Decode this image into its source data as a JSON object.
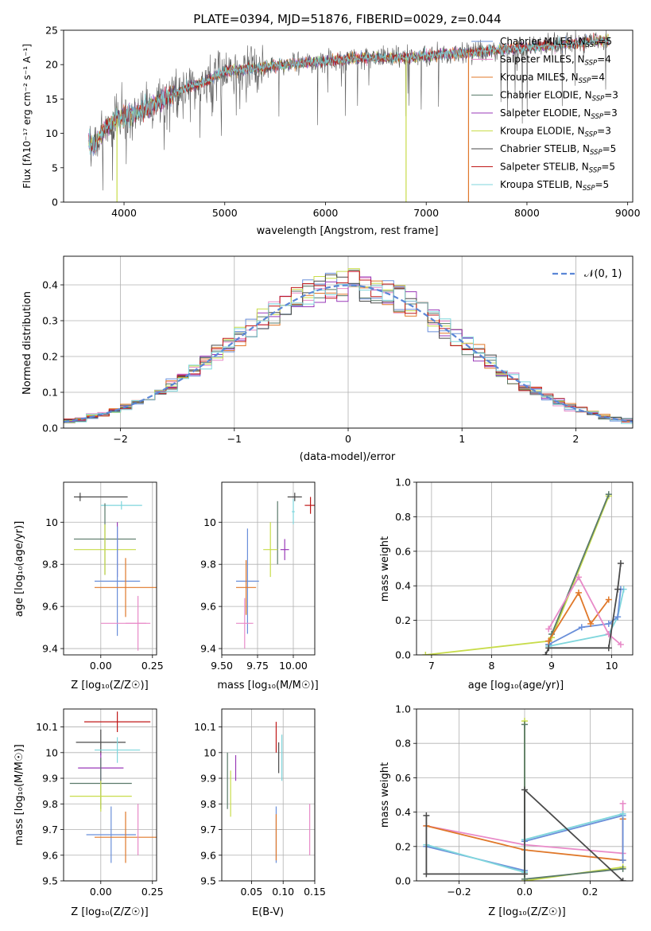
{
  "chart_data": [
    {
      "id": "spectrum",
      "type": "line",
      "title": "PLATE=0394, MJD=51876, FIBERID=0029, z=0.044",
      "xlabel": "wavelength [Angstrom, rest frame]",
      "ylabel": "Flux [fλ10⁻¹⁷ erg cm⁻² s⁻¹ A⁻¹]",
      "xlim": [
        3400,
        9050
      ],
      "ylim": [
        0,
        25
      ],
      "xticks": [
        4000,
        5000,
        6000,
        7000,
        8000,
        9000
      ],
      "yticks": [
        0,
        5,
        10,
        15,
        20,
        25
      ],
      "grid": false,
      "legend_position": "top-right",
      "continuum": {
        "x": [
          3650,
          3700,
          3800,
          3900,
          4000,
          4200,
          4400,
          4600,
          4800,
          5000,
          5300,
          5600,
          6000,
          6400,
          6800,
          7200,
          7600,
          8000,
          8400,
          8800
        ],
        "y": [
          9.0,
          8.0,
          10.5,
          12.0,
          12.5,
          13.5,
          15.0,
          16.5,
          17.5,
          19.0,
          19.5,
          20.0,
          20.5,
          21.0,
          21.0,
          21.5,
          22.0,
          22.5,
          23.0,
          23.5
        ]
      },
      "drop_lines_x": [
        3930,
        6800,
        7420
      ],
      "series": [
        {
          "name": "Chabrier MILES, N",
          "sub": "SSP",
          "suffix": "=5",
          "color": "#6a8fd9"
        },
        {
          "name": "Salpeter MILES, N",
          "sub": "SSP",
          "suffix": "=4",
          "color": "#e88ac8"
        },
        {
          "name": "Kroupa MILES, N",
          "sub": "SSP",
          "suffix": "=4",
          "color": "#e0782a"
        },
        {
          "name": "Chabrier ELODIE, N",
          "sub": "SSP",
          "suffix": "=3",
          "color": "#5a7a6a"
        },
        {
          "name": "Salpeter ELODIE, N",
          "sub": "SSP",
          "suffix": "=3",
          "color": "#9a3ab8"
        },
        {
          "name": "Kroupa ELODIE, N",
          "sub": "SSP",
          "suffix": "=3",
          "color": "#c8dc4a"
        },
        {
          "name": "Chabrier STELIB, N",
          "sub": "SSP",
          "suffix": "=5",
          "color": "#4a4a4a"
        },
        {
          "name": "Salpeter STELIB, N",
          "sub": "SSP",
          "suffix": "=5",
          "color": "#c01818"
        },
        {
          "name": "Kroupa STELIB, N",
          "sub": "SSP",
          "suffix": "=5",
          "color": "#7fd6dc"
        }
      ]
    },
    {
      "id": "residuals",
      "type": "line",
      "xlabel": "(data-model)/error",
      "ylabel": "Normed distribution",
      "xlim": [
        -2.5,
        2.5
      ],
      "ylim": [
        0,
        0.48
      ],
      "xticks": [
        -2,
        -1,
        0,
        1,
        2
      ],
      "yticks": [
        0.0,
        0.1,
        0.2,
        0.3,
        0.4
      ],
      "grid": true,
      "legend_position": "top-right",
      "reference_curve": {
        "name": "𝒩(0, 1)",
        "color": "#5b86d6",
        "style": "dashed"
      },
      "bin_width": 0.1
    },
    {
      "id": "age-vs-Z",
      "type": "scatter",
      "xlabel": "Z [log₁₀(Z/Z☉)]",
      "ylabel": "age  [log₁₀(age/yr)]",
      "xlim": [
        -0.18,
        0.27
      ],
      "ylim": [
        9.37,
        10.19
      ],
      "xticks": [
        0.0,
        0.25
      ],
      "xtick_labels": [
        "0.00",
        "0.25"
      ],
      "yticks": [
        9.4,
        9.6,
        9.8,
        10.0
      ],
      "grid": true,
      "points": [
        {
          "x": 0.1,
          "y": 10.08,
          "xerr": 0.1,
          "yerr": 0.02,
          "color": "#7fd6dc"
        },
        {
          "x": -0.1,
          "y": 10.12,
          "xerr": 0.01,
          "yerr": 0.02,
          "color": "#4a4a4a"
        },
        {
          "x": 0.0,
          "y": 10.12,
          "xerr": 0.13,
          "yerr": 0.0,
          "color": "#4a4a4a"
        },
        {
          "x": 0.02,
          "y": 9.92,
          "xerr": 0.15,
          "yerr": 0.17,
          "color": "#5a7a6a"
        },
        {
          "x": 0.02,
          "y": 9.87,
          "xerr": 0.15,
          "yerr": 0.12,
          "color": "#c8dc4a"
        },
        {
          "x": 0.08,
          "y": 9.87,
          "xerr": 0.0,
          "yerr": 0.13,
          "color": "#9a3ab8"
        },
        {
          "x": 0.08,
          "y": 9.72,
          "xerr": 0.11,
          "yerr": 0.26,
          "color": "#6a8fd9"
        },
        {
          "x": 0.12,
          "y": 9.69,
          "xerr": 0.15,
          "yerr": 0.14,
          "color": "#e0782a"
        },
        {
          "x": 0.18,
          "y": 9.52,
          "xerr": 0.06,
          "yerr": 0.13,
          "color": "#e88ac8"
        },
        {
          "x": 0.11,
          "y": 9.52,
          "xerr": 0.11,
          "yerr": 0.0,
          "color": "#e88ac8"
        }
      ]
    },
    {
      "id": "age-vs-mass",
      "type": "scatter",
      "xlabel": "mass [log₁₀(M/M☉)]",
      "xlim": [
        9.5,
        10.15
      ],
      "ylim": [
        9.37,
        10.19
      ],
      "xticks": [
        9.5,
        9.75,
        10.0
      ],
      "xtick_labels": [
        "9.50",
        "9.75",
        "10.00"
      ],
      "yticks": [
        9.4,
        9.6,
        9.8,
        10.0
      ],
      "grid": true,
      "points": [
        {
          "x": 10.12,
          "y": 10.08,
          "xerr": 0.04,
          "yerr": 0.04,
          "color": "#c01818"
        },
        {
          "x": 10.01,
          "y": 10.12,
          "xerr": 0.05,
          "yerr": 0.02,
          "color": "#4a4a4a"
        },
        {
          "x": 10.0,
          "y": 10.05,
          "xerr": 0.01,
          "yerr": 0.06,
          "color": "#7fd6dc"
        },
        {
          "x": 9.89,
          "y": 9.95,
          "xerr": 0.0,
          "yerr": 0.15,
          "color": "#5a7a6a"
        },
        {
          "x": 9.94,
          "y": 9.87,
          "xerr": 0.03,
          "yerr": 0.05,
          "color": "#9a3ab8"
        },
        {
          "x": 9.84,
          "y": 9.87,
          "xerr": 0.05,
          "yerr": 0.13,
          "color": "#c8dc4a"
        },
        {
          "x": 9.68,
          "y": 9.72,
          "xerr": 0.08,
          "yerr": 0.25,
          "color": "#6a8fd9"
        },
        {
          "x": 9.67,
          "y": 9.69,
          "xerr": 0.07,
          "yerr": 0.13,
          "color": "#e0782a"
        },
        {
          "x": 9.66,
          "y": 9.52,
          "xerr": 0.06,
          "yerr": 0.12,
          "color": "#e88ac8"
        }
      ]
    },
    {
      "id": "mass-weight-vs-age",
      "type": "line",
      "xlabel": "age  [log₁₀(age/yr)]",
      "ylabel": "mass weight",
      "xlim": [
        6.75,
        10.35
      ],
      "ylim": [
        0,
        1.0
      ],
      "xticks": [
        7,
        8,
        9,
        10
      ],
      "yticks": [
        0.0,
        0.2,
        0.4,
        0.6,
        0.8,
        1.0
      ],
      "ytick_labels": [
        "0.0",
        "0.2",
        "0.4",
        "0.6",
        "0.8",
        "1.0"
      ],
      "grid": true,
      "series": [
        {
          "color": "#c8dc4a",
          "x": [
            6.9,
            8.95,
            9.0,
            9.95
          ],
          "y": [
            0.0,
            0.08,
            0.1,
            0.92
          ]
        },
        {
          "color": "#5a7a6a",
          "x": [
            8.95,
            9.0,
            9.95
          ],
          "y": [
            0.06,
            0.12,
            0.93
          ]
        },
        {
          "color": "#7fd6dc",
          "x": [
            8.95,
            9.95,
            10.1,
            10.2
          ],
          "y": [
            0.05,
            0.12,
            0.22,
            0.38
          ]
        },
        {
          "color": "#6a8fd9",
          "x": [
            8.95,
            9.5,
            9.95,
            10.1,
            10.15
          ],
          "y": [
            0.06,
            0.16,
            0.18,
            0.22,
            0.38
          ]
        },
        {
          "color": "#e0782a",
          "x": [
            8.95,
            9.45,
            9.65,
            9.95
          ],
          "y": [
            0.08,
            0.36,
            0.18,
            0.32
          ]
        },
        {
          "color": "#e88ac8",
          "x": [
            8.95,
            9.45,
            9.95,
            10.15
          ],
          "y": [
            0.15,
            0.45,
            0.12,
            0.06
          ]
        },
        {
          "color": "#4a4a4a",
          "x": [
            8.9,
            8.95,
            9.95,
            10.1,
            10.15
          ],
          "y": [
            0.0,
            0.04,
            0.04,
            0.38,
            0.53
          ]
        }
      ]
    },
    {
      "id": "mass-vs-Z",
      "type": "scatter",
      "xlabel": "Z [log₁₀(Z/Z☉)]",
      "ylabel": "mass [log₁₀(M/M☉)]",
      "xlim": [
        -0.18,
        0.27
      ],
      "ylim": [
        9.5,
        10.17
      ],
      "xticks": [
        0.0,
        0.25
      ],
      "xtick_labels": [
        "0.00",
        "0.25"
      ],
      "yticks": [
        9.5,
        9.6,
        9.7,
        9.8,
        9.9,
        10.0,
        10.1
      ],
      "grid": true,
      "points": [
        {
          "x": 0.08,
          "y": 10.12,
          "xerr": 0.16,
          "yerr": 0.04,
          "color": "#c01818"
        },
        {
          "x": 0.0,
          "y": 10.04,
          "xerr": 0.12,
          "yerr": 0.05,
          "color": "#4a4a4a"
        },
        {
          "x": 0.08,
          "y": 10.01,
          "xerr": 0.11,
          "yerr": 0.05,
          "color": "#7fd6dc"
        },
        {
          "x": 0.0,
          "y": 9.94,
          "xerr": 0.11,
          "yerr": 0.06,
          "color": "#9a3ab8"
        },
        {
          "x": 0.0,
          "y": 9.88,
          "xerr": 0.15,
          "yerr": 0.1,
          "color": "#5a7a6a"
        },
        {
          "x": 0.0,
          "y": 9.83,
          "xerr": 0.15,
          "yerr": 0.06,
          "color": "#c8dc4a"
        },
        {
          "x": 0.05,
          "y": 9.68,
          "xerr": 0.12,
          "yerr": 0.11,
          "color": "#6a8fd9"
        },
        {
          "x": 0.12,
          "y": 9.67,
          "xerr": 0.15,
          "yerr": 0.1,
          "color": "#e0782a"
        },
        {
          "x": 0.18,
          "y": 9.7,
          "xerr": 0.0,
          "yerr": 0.1,
          "color": "#e88ac8"
        }
      ]
    },
    {
      "id": "mass-vs-EBV",
      "type": "scatter",
      "xlabel": "E(B-V)",
      "xlim": [
        0.003,
        0.15
      ],
      "ylim": [
        9.5,
        10.17
      ],
      "xticks": [
        0.05,
        0.1,
        0.15
      ],
      "xtick_labels": [
        "0.05",
        "0.10",
        "0.15"
      ],
      "yticks": [
        9.5,
        9.6,
        9.7,
        9.8,
        9.9,
        10.0,
        10.1
      ],
      "grid": true,
      "points": [
        {
          "x": 0.089,
          "y": 10.06,
          "xerr": 0.0,
          "yerr": 0.06,
          "color": "#c01818"
        },
        {
          "x": 0.093,
          "y": 9.98,
          "xerr": 0.0,
          "yerr": 0.06,
          "color": "#4a4a4a"
        },
        {
          "x": 0.098,
          "y": 9.98,
          "xerr": 0.0,
          "yerr": 0.09,
          "color": "#7fd6dc"
        },
        {
          "x": 0.025,
          "y": 9.94,
          "xerr": 0.0,
          "yerr": 0.05,
          "color": "#9a3ab8"
        },
        {
          "x": 0.012,
          "y": 9.89,
          "xerr": 0.0,
          "yerr": 0.11,
          "color": "#5a7a6a"
        },
        {
          "x": 0.017,
          "y": 9.84,
          "xerr": 0.0,
          "yerr": 0.09,
          "color": "#c8dc4a"
        },
        {
          "x": 0.089,
          "y": 9.68,
          "xerr": 0.0,
          "yerr": 0.11,
          "color": "#6a8fd9"
        },
        {
          "x": 0.089,
          "y": 9.67,
          "xerr": 0.0,
          "yerr": 0.09,
          "color": "#e0782a"
        },
        {
          "x": 0.142,
          "y": 9.7,
          "xerr": 0.0,
          "yerr": 0.1,
          "color": "#e88ac8"
        }
      ]
    },
    {
      "id": "mass-weight-vs-Z",
      "type": "line",
      "xlabel": "Z [log₁₀(Z/Z☉)]",
      "ylabel": "mass weight",
      "xlim": [
        -0.33,
        0.33
      ],
      "ylim": [
        0,
        1.0
      ],
      "xticks": [
        -0.2,
        0.0,
        0.2
      ],
      "xtick_labels": [
        "−0.2",
        "0.0",
        "0.2"
      ],
      "yticks": [
        0.0,
        0.2,
        0.4,
        0.6,
        0.8,
        1.0
      ],
      "ytick_labels": [
        "0.0",
        "0.2",
        "0.4",
        "0.6",
        "0.8",
        "1.0"
      ],
      "grid": true,
      "series": [
        {
          "color": "#c8dc4a",
          "x": [
            0.0,
            0.0,
            0.3
          ],
          "y": [
            0.93,
            0.0,
            0.08
          ]
        },
        {
          "color": "#5a7a6a",
          "x": [
            0.0,
            0.0,
            0.3
          ],
          "y": [
            0.91,
            0.01,
            0.07
          ]
        },
        {
          "color": "#e88ac8",
          "x": [
            -0.3,
            0.0,
            0.3,
            0.3
          ],
          "y": [
            0.32,
            0.21,
            0.16,
            0.45
          ]
        },
        {
          "color": "#e0782a",
          "x": [
            -0.3,
            0.0,
            0.3,
            0.3
          ],
          "y": [
            0.32,
            0.18,
            0.12,
            0.36
          ]
        },
        {
          "color": "#6a8fd9",
          "x": [
            -0.3,
            0.0,
            0.0,
            0.3,
            0.3
          ],
          "y": [
            0.2,
            0.06,
            0.23,
            0.38,
            0.12
          ]
        },
        {
          "color": "#7fd6dc",
          "x": [
            -0.3,
            0.0,
            0.0,
            0.3
          ],
          "y": [
            0.21,
            0.05,
            0.24,
            0.39
          ]
        },
        {
          "color": "#4a4a4a",
          "x": [
            -0.3,
            -0.3,
            0.0,
            0.0,
            0.3
          ],
          "y": [
            0.38,
            0.04,
            0.04,
            0.53,
            0.0
          ]
        }
      ]
    }
  ]
}
